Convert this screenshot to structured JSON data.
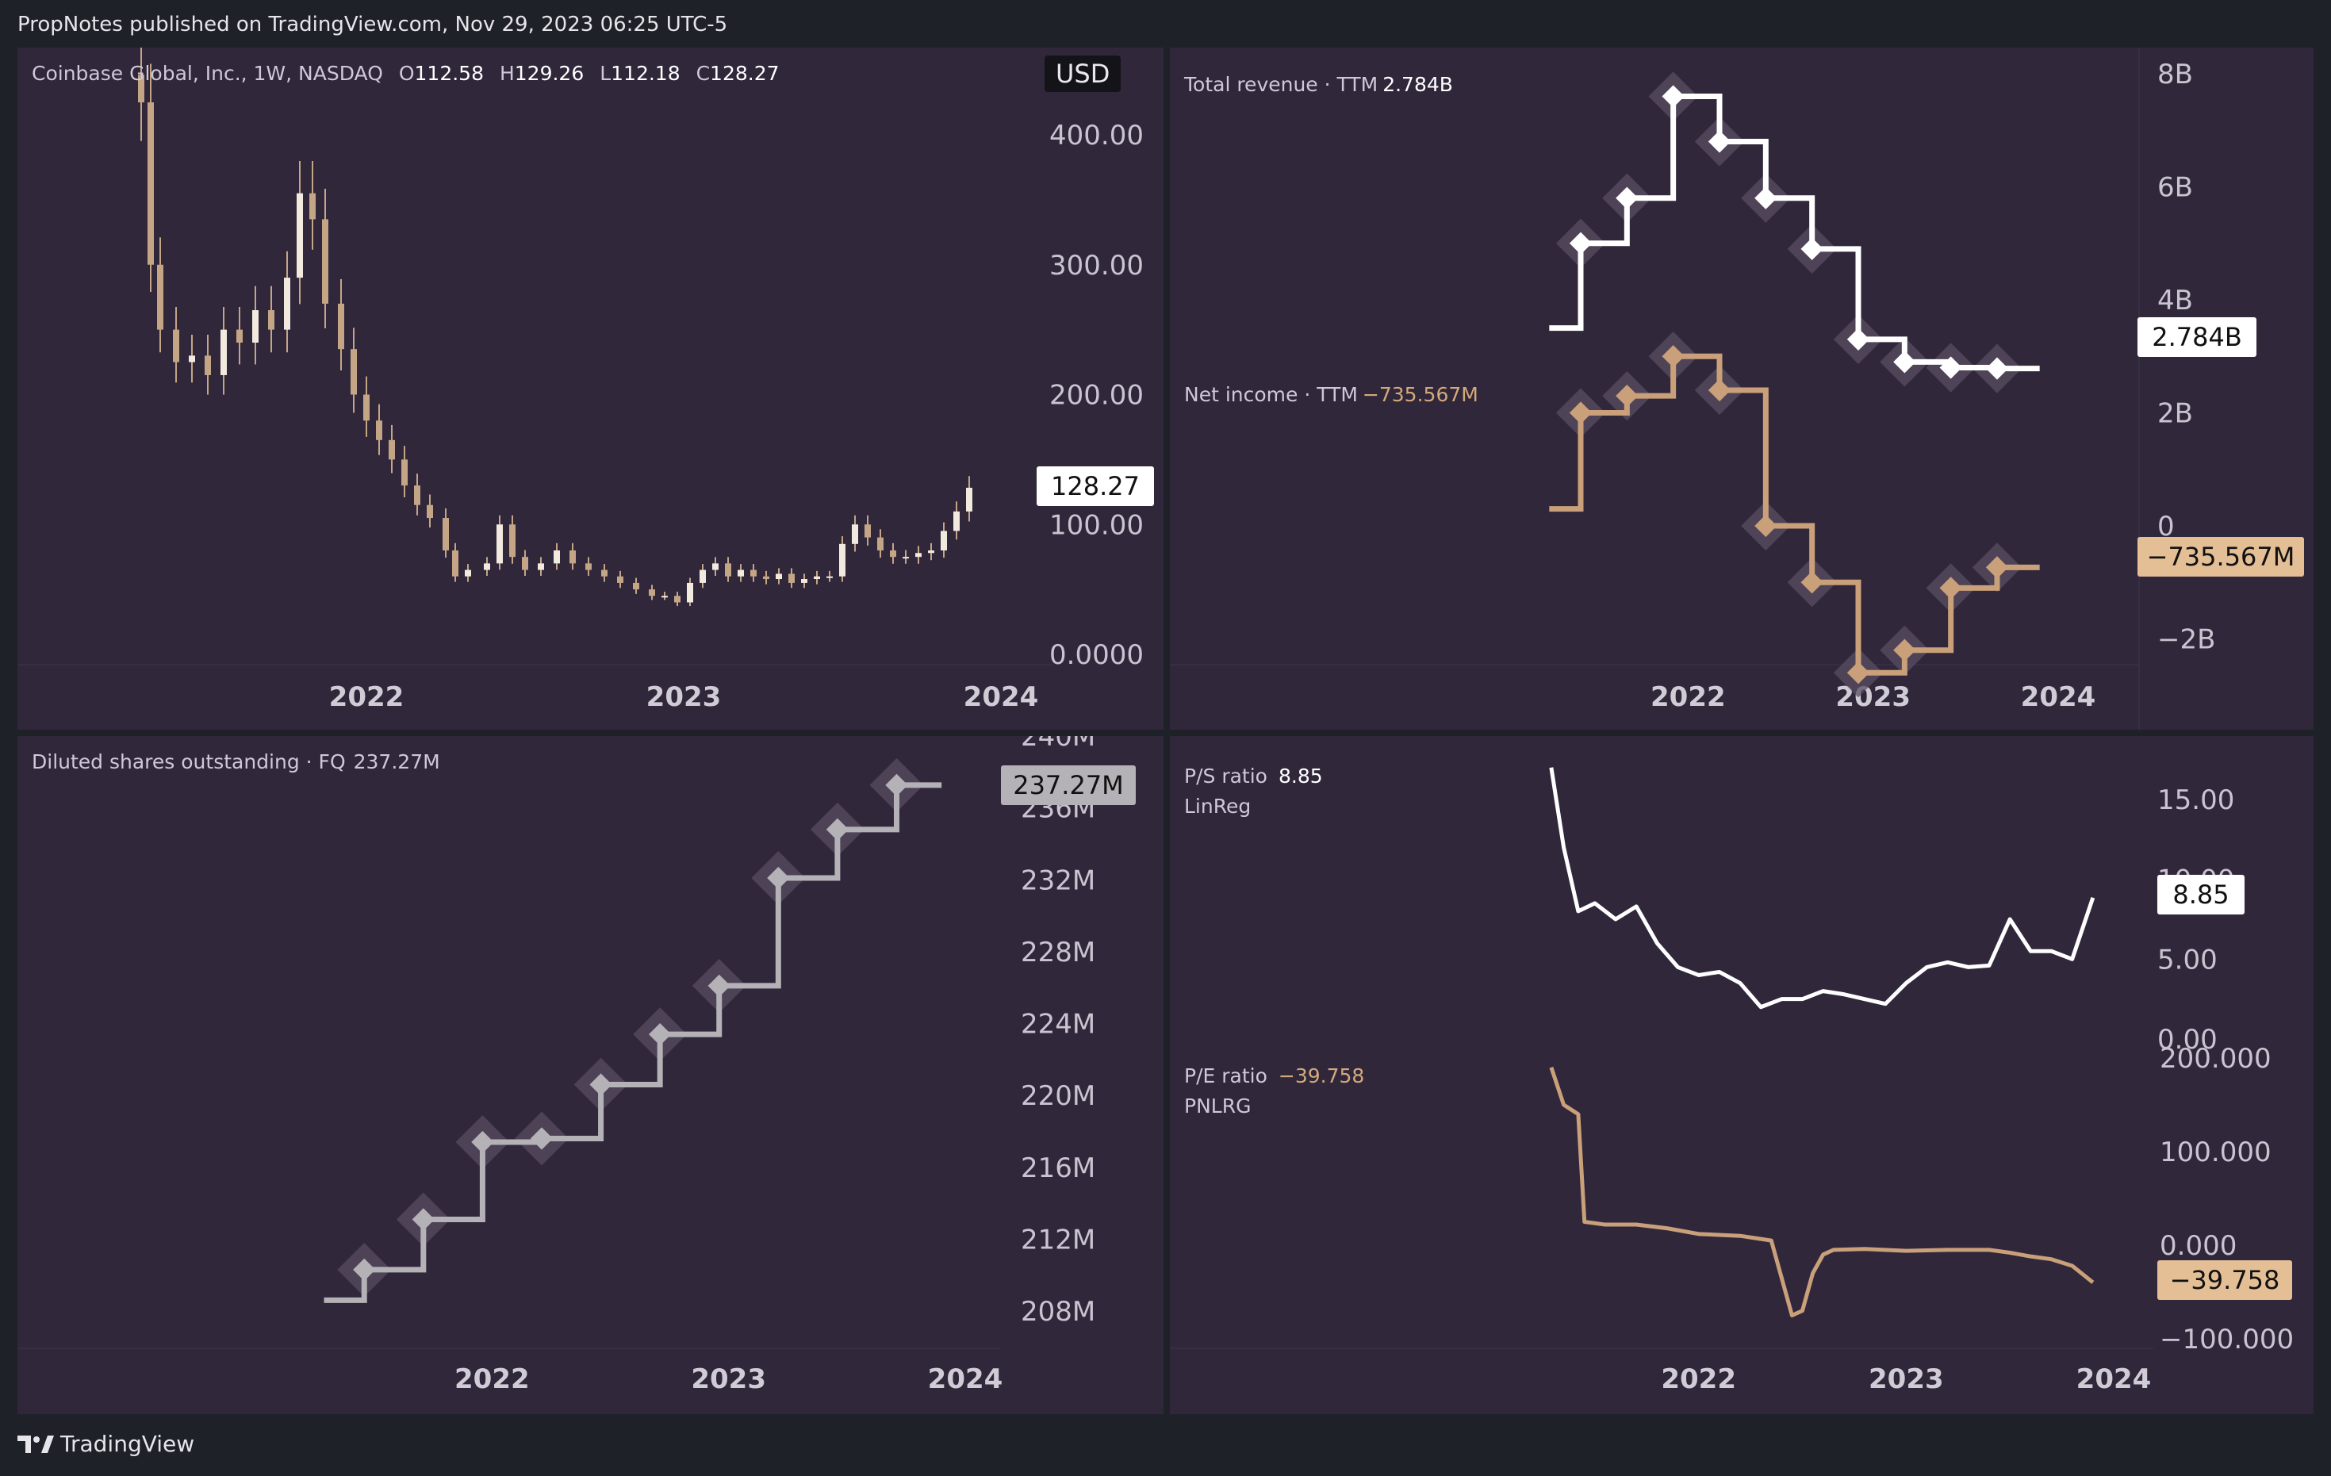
{
  "header": {
    "publisher_line": "PropNotes published on TradingView.com, Nov 29, 2023 06:25 UTC-5"
  },
  "footer": {
    "brand": "TradingView"
  },
  "colors": {
    "background": "#1f2129",
    "panel": "#30273b",
    "white_series": "#ffffff",
    "tan_series": "#c9a07a",
    "gray_series": "#b4b2b6"
  },
  "price_panel": {
    "symbol": "Coinbase Global, Inc., 1W, NASDAQ",
    "o_label": "O",
    "o_value": "112.58",
    "h_label": "H",
    "h_value": "129.26",
    "l_label": "L",
    "l_value": "112.18",
    "c_label": "C",
    "c_value": "128.27",
    "currency": "USD",
    "last_price": "128.27"
  },
  "revenue_panel": {
    "rev_name": "Total revenue · TTM",
    "rev_value": "2.784B",
    "rev_tag": "2.784B",
    "ni_name": "Net income · TTM",
    "ni_value": "−735.567M",
    "ni_tag": "−735.567M"
  },
  "shares_panel": {
    "name": "Diluted shares outstanding · FQ",
    "value": "237.27M",
    "tag": "237.27M"
  },
  "ratio_panel": {
    "ps_name": "P/S ratio",
    "ps_value": "8.85",
    "ps_sub": "LinReg",
    "ps_tag": "8.85",
    "pe_name": "P/E ratio",
    "pe_value": "−39.758",
    "pe_sub": "PNLRG",
    "pe_tag": "−39.758"
  },
  "chart_data": [
    {
      "type": "candlestick",
      "title": "Coinbase Global, Inc., 1W, NASDAQ",
      "x_ticks": [
        "2022",
        "2023",
        "2024"
      ],
      "y_ticks": [
        "0.0000",
        "100.00",
        "200.00",
        "300.00",
        "400.00"
      ],
      "ylim": [
        0,
        430
      ],
      "x_range": [
        "2021-04",
        "2023-11"
      ],
      "series": [
        {
          "values": [
            [
              2021.29,
              425
            ],
            [
              2021.32,
              300
            ],
            [
              2021.35,
              250
            ],
            [
              2021.4,
              225
            ],
            [
              2021.45,
              230
            ],
            [
              2021.5,
              215
            ],
            [
              2021.55,
              250
            ],
            [
              2021.6,
              240
            ],
            [
              2021.65,
              265
            ],
            [
              2021.7,
              250
            ],
            [
              2021.75,
              290
            ],
            [
              2021.79,
              355
            ],
            [
              2021.83,
              335
            ],
            [
              2021.87,
              270
            ],
            [
              2021.92,
              235
            ],
            [
              2021.96,
              200
            ],
            [
              2022.0,
              180
            ],
            [
              2022.04,
              165
            ],
            [
              2022.08,
              150
            ],
            [
              2022.12,
              130
            ],
            [
              2022.16,
              115
            ],
            [
              2022.2,
              105
            ],
            [
              2022.25,
              80
            ],
            [
              2022.28,
              60
            ],
            [
              2022.32,
              65
            ],
            [
              2022.38,
              70
            ],
            [
              2022.42,
              100
            ],
            [
              2022.46,
              75
            ],
            [
              2022.5,
              65
            ],
            [
              2022.55,
              70
            ],
            [
              2022.6,
              80
            ],
            [
              2022.65,
              70
            ],
            [
              2022.7,
              65
            ],
            [
              2022.75,
              60
            ],
            [
              2022.8,
              55
            ],
            [
              2022.85,
              50
            ],
            [
              2022.9,
              45
            ],
            [
              2022.94,
              45
            ],
            [
              2022.98,
              40
            ],
            [
              2023.02,
              55
            ],
            [
              2023.06,
              65
            ],
            [
              2023.1,
              70
            ],
            [
              2023.14,
              60
            ],
            [
              2023.18,
              65
            ],
            [
              2023.22,
              60
            ],
            [
              2023.26,
              58
            ],
            [
              2023.3,
              62
            ],
            [
              2023.34,
              55
            ],
            [
              2023.38,
              58
            ],
            [
              2023.42,
              60
            ],
            [
              2023.46,
              60
            ],
            [
              2023.5,
              85
            ],
            [
              2023.54,
              100
            ],
            [
              2023.58,
              90
            ],
            [
              2023.62,
              80
            ],
            [
              2023.66,
              75
            ],
            [
              2023.7,
              75
            ],
            [
              2023.74,
              78
            ],
            [
              2023.78,
              80
            ],
            [
              2023.82,
              95
            ],
            [
              2023.86,
              110
            ],
            [
              2023.9,
              128.27
            ]
          ]
        }
      ]
    },
    {
      "type": "line",
      "step": true,
      "x_ticks": [
        "2022",
        "2023",
        "2024"
      ],
      "y_ticks": [
        "−2B",
        "0",
        "2B",
        "4B",
        "6B",
        "8B"
      ],
      "ylim": [
        -2.8,
        8.0
      ],
      "series": [
        {
          "name": "Total revenue · TTM",
          "color": "#ffffff",
          "x": [
            2021.25,
            2021.42,
            2021.67,
            2021.92,
            2022.17,
            2022.42,
            2022.67,
            2022.92,
            2023.17,
            2023.42,
            2023.67,
            2023.9
          ],
          "y": [
            3.5,
            5.0,
            5.8,
            7.6,
            6.8,
            5.8,
            4.9,
            3.3,
            2.9,
            2.8,
            2.784,
            2.784
          ]
        },
        {
          "name": "Net income · TTM",
          "color": "#c9a07a",
          "x": [
            2021.25,
            2021.42,
            2021.67,
            2021.92,
            2022.17,
            2022.42,
            2022.67,
            2022.92,
            2023.17,
            2023.42,
            2023.67,
            2023.9
          ],
          "y": [
            0.3,
            2.0,
            2.3,
            3.0,
            2.4,
            0.0,
            -1.0,
            -2.6,
            -2.2,
            -1.1,
            -0.7356,
            -0.7356
          ]
        }
      ]
    },
    {
      "type": "line",
      "step": true,
      "x_ticks": [
        "2022",
        "2023",
        "2024"
      ],
      "y_ticks": [
        "208M",
        "212M",
        "216M",
        "220M",
        "224M",
        "228M",
        "232M",
        "236M",
        "240M"
      ],
      "ylim": [
        207,
        240
      ],
      "series": [
        {
          "name": "Diluted shares outstanding · FQ",
          "color": "#b4b2b6",
          "x": [
            2021.29,
            2021.46,
            2021.71,
            2021.96,
            2022.21,
            2022.46,
            2022.71,
            2022.96,
            2023.21,
            2023.46,
            2023.71,
            2023.9
          ],
          "y": [
            208.6,
            210.3,
            213.1,
            217.4,
            217.6,
            220.6,
            223.4,
            226.1,
            232.1,
            234.8,
            237.27,
            237.27
          ]
        }
      ]
    },
    {
      "type": "line",
      "x_ticks": [
        "2022",
        "2023",
        "2024"
      ],
      "y_ticks": [
        "0.00",
        "5.00",
        "10.00",
        "15.00"
      ],
      "ylim": [
        0,
        18
      ],
      "series": [
        {
          "name": "P/S ratio",
          "color": "#ffffff",
          "x": [
            2021.29,
            2021.35,
            2021.42,
            2021.5,
            2021.6,
            2021.7,
            2021.8,
            2021.9,
            2022.0,
            2022.1,
            2022.2,
            2022.3,
            2022.4,
            2022.5,
            2022.6,
            2022.7,
            2022.8,
            2022.9,
            2023.0,
            2023.1,
            2023.2,
            2023.3,
            2023.4,
            2023.5,
            2023.6,
            2023.7,
            2023.8,
            2023.9
          ],
          "y": [
            17,
            12,
            8,
            8.5,
            7.5,
            8.3,
            6,
            4.5,
            4,
            4.2,
            3.5,
            2,
            2.5,
            2.5,
            3,
            2.8,
            2.5,
            2.2,
            3.5,
            4.5,
            4.8,
            4.5,
            4.6,
            7.5,
            5.5,
            5.5,
            5,
            8.85
          ]
        }
      ]
    },
    {
      "type": "line",
      "x_ticks": [
        "2022",
        "2023",
        "2024"
      ],
      "y_ticks": [
        "−100.000",
        "0.000",
        "100.000",
        "200.000"
      ],
      "ylim": [
        -110,
        205
      ],
      "series": [
        {
          "name": "P/E ratio",
          "color": "#c9a07a",
          "x": [
            2021.29,
            2021.35,
            2021.42,
            2021.45,
            2021.55,
            2021.7,
            2021.85,
            2022.0,
            2022.2,
            2022.35,
            2022.45,
            2022.5,
            2022.55,
            2022.6,
            2022.65,
            2022.8,
            2023.0,
            2023.2,
            2023.4,
            2023.5,
            2023.6,
            2023.7,
            2023.8,
            2023.9
          ],
          "y": [
            190,
            150,
            140,
            25,
            22,
            22,
            18,
            12,
            10,
            5,
            -75,
            -70,
            -30,
            -10,
            -5,
            -4,
            -6,
            -5,
            -5,
            -8,
            -12,
            -15,
            -22,
            -39.758
          ]
        }
      ]
    }
  ]
}
